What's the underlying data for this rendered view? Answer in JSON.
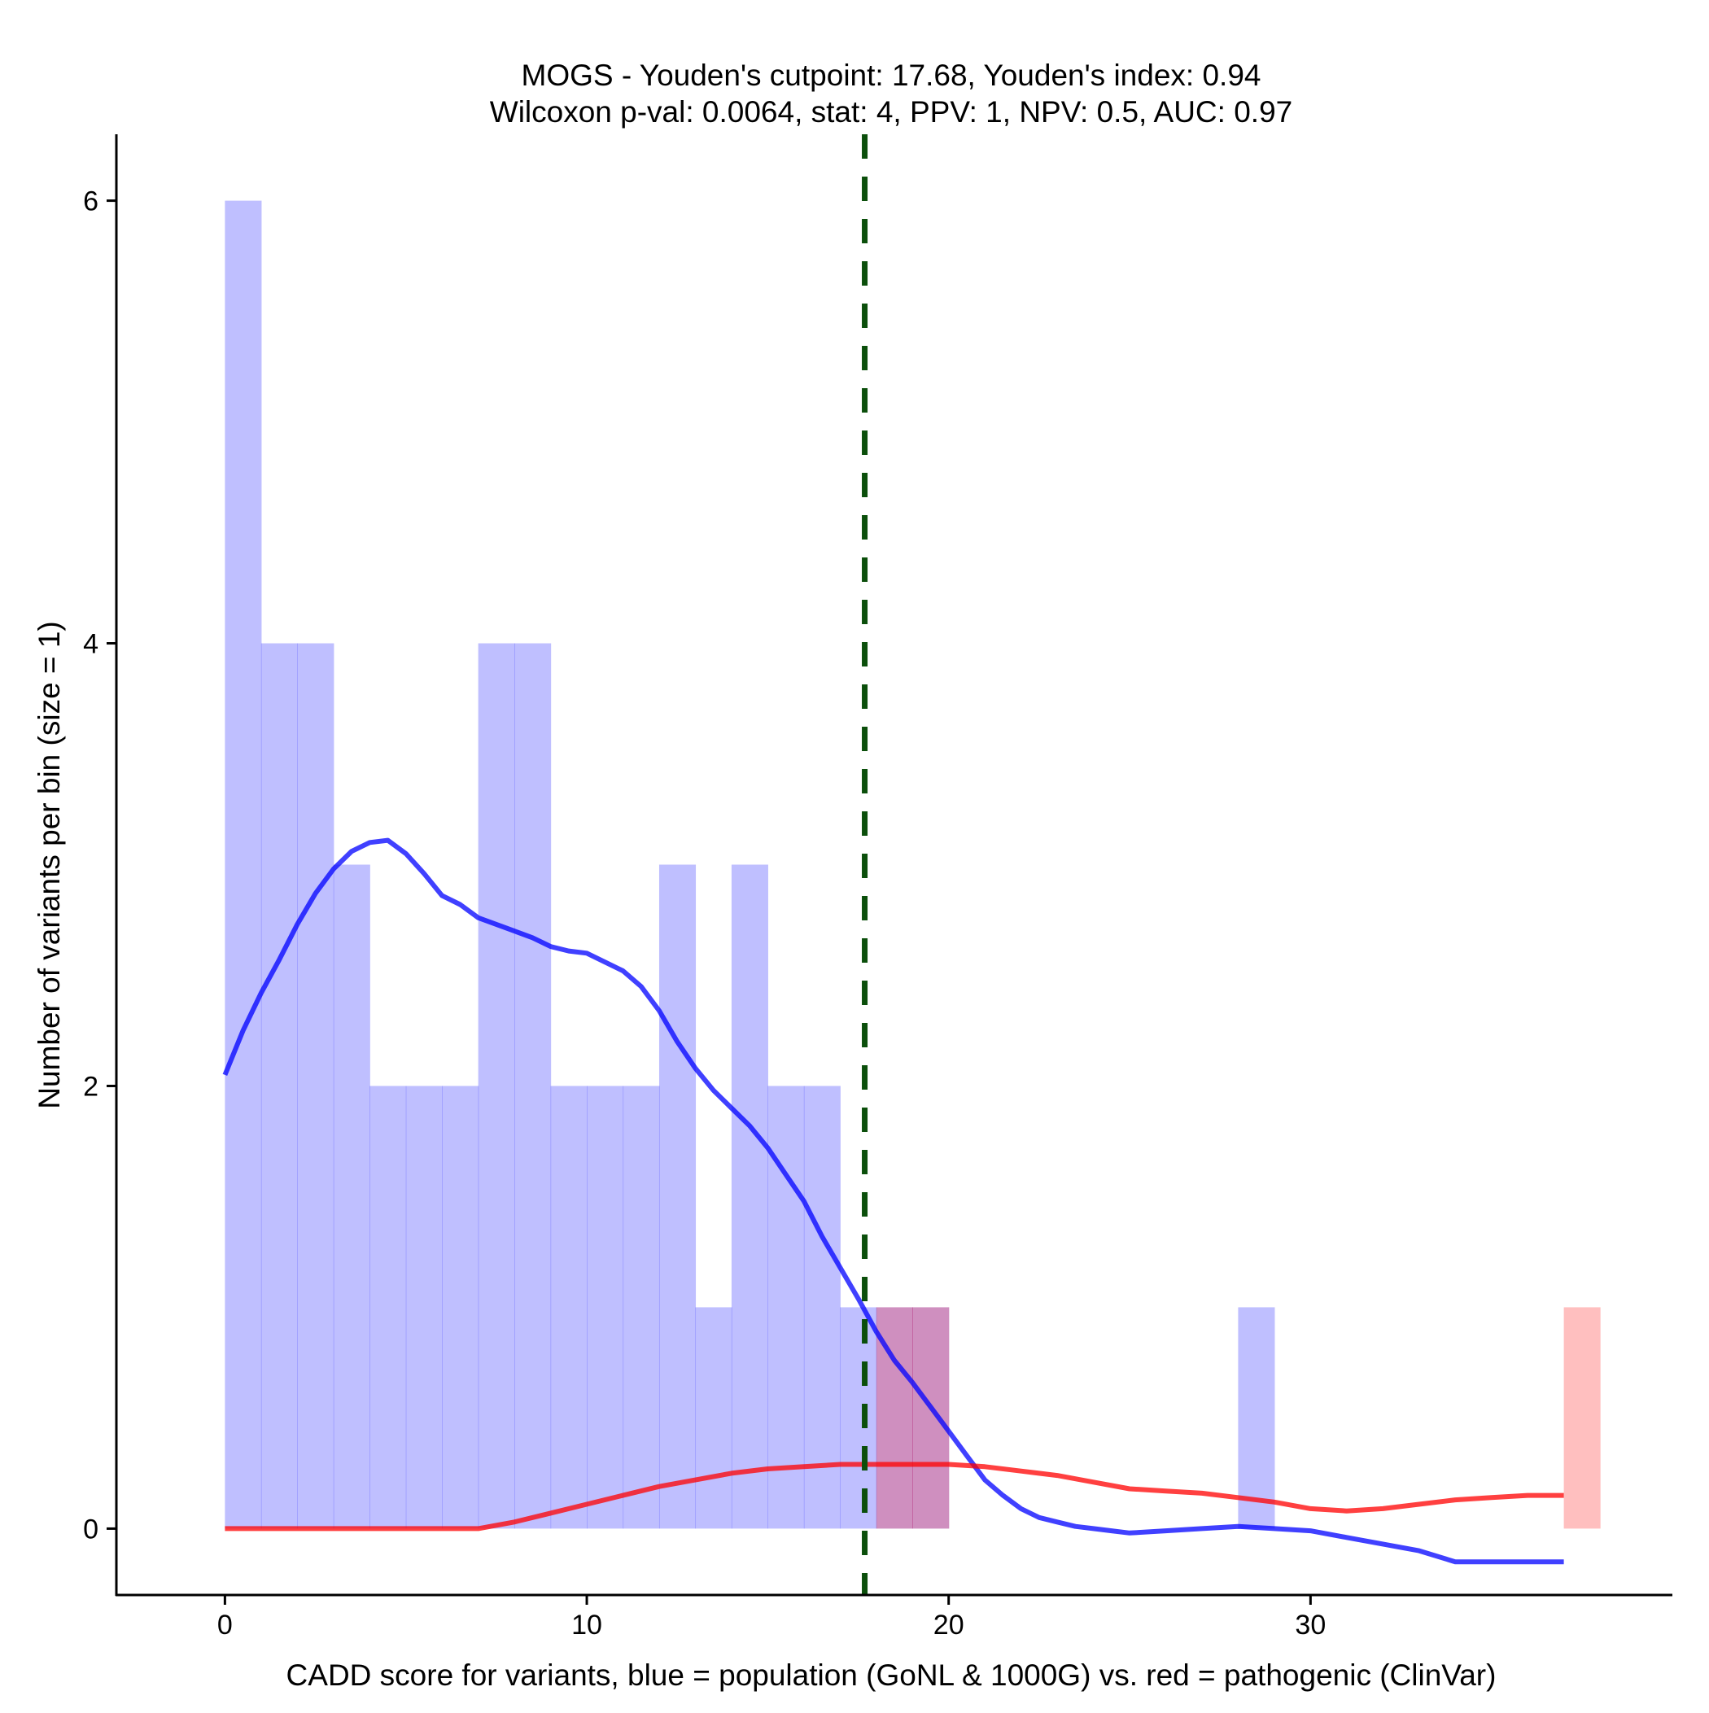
{
  "chart_data": {
    "type": "histogram",
    "title": "MOGS - Youden's cutpoint: 17.68, Youden's index: 0.94",
    "subtitle": "Wilcoxon p-val: 0.0064, stat: 4, PPV: 1, NPV: 0.5, AUC: 0.97",
    "xlabel": "CADD score for variants, blue = population (GoNL & 1000G) vs. red = pathogenic (ClinVar)",
    "ylabel": "Number of variants per bin (size = 1)",
    "xlim": [
      -3,
      40
    ],
    "ylim": [
      -0.3,
      6.3
    ],
    "x_ticks": [
      0,
      10,
      20,
      30
    ],
    "y_ticks": [
      0,
      2,
      4,
      6
    ],
    "cutpoint": 17.68,
    "series": [
      {
        "name": "population (GoNL & 1000G)",
        "color": "#0000ff",
        "bins": [
          {
            "x0": 0,
            "x1": 1,
            "count": 6
          },
          {
            "x0": 1,
            "x1": 2,
            "count": 4
          },
          {
            "x0": 2,
            "x1": 3,
            "count": 4
          },
          {
            "x0": 3,
            "x1": 4,
            "count": 3
          },
          {
            "x0": 4,
            "x1": 5,
            "count": 2
          },
          {
            "x0": 5,
            "x1": 6,
            "count": 2
          },
          {
            "x0": 6,
            "x1": 7,
            "count": 2
          },
          {
            "x0": 7,
            "x1": 8,
            "count": 4
          },
          {
            "x0": 8,
            "x1": 9,
            "count": 4
          },
          {
            "x0": 9,
            "x1": 10,
            "count": 2
          },
          {
            "x0": 10,
            "x1": 11,
            "count": 2
          },
          {
            "x0": 11,
            "x1": 12,
            "count": 2
          },
          {
            "x0": 12,
            "x1": 13,
            "count": 3
          },
          {
            "x0": 13,
            "x1": 14,
            "count": 1
          },
          {
            "x0": 14,
            "x1": 15,
            "count": 3
          },
          {
            "x0": 15,
            "x1": 16,
            "count": 2
          },
          {
            "x0": 16,
            "x1": 17,
            "count": 2
          },
          {
            "x0": 17,
            "x1": 18,
            "count": 1
          },
          {
            "x0": 18,
            "x1": 19,
            "count": 1
          },
          {
            "x0": 19,
            "x1": 20,
            "count": 1
          },
          {
            "x0": 28,
            "x1": 29,
            "count": 1
          }
        ],
        "density": [
          [
            0,
            2.05
          ],
          [
            0.5,
            2.25
          ],
          [
            1,
            2.42
          ],
          [
            1.5,
            2.57
          ],
          [
            2,
            2.73
          ],
          [
            2.5,
            2.87
          ],
          [
            3,
            2.98
          ],
          [
            3.5,
            3.06
          ],
          [
            4,
            3.1
          ],
          [
            4.5,
            3.11
          ],
          [
            5,
            3.05
          ],
          [
            5.5,
            2.96
          ],
          [
            6,
            2.86
          ],
          [
            6.5,
            2.82
          ],
          [
            7,
            2.76
          ],
          [
            7.5,
            2.73
          ],
          [
            8,
            2.7
          ],
          [
            8.5,
            2.67
          ],
          [
            9,
            2.63
          ],
          [
            9.5,
            2.61
          ],
          [
            10,
            2.6
          ],
          [
            10.5,
            2.56
          ],
          [
            11,
            2.52
          ],
          [
            11.5,
            2.45
          ],
          [
            12,
            2.34
          ],
          [
            12.5,
            2.2
          ],
          [
            13,
            2.08
          ],
          [
            13.5,
            1.98
          ],
          [
            14,
            1.9
          ],
          [
            14.5,
            1.82
          ],
          [
            15,
            1.72
          ],
          [
            15.5,
            1.6
          ],
          [
            16,
            1.48
          ],
          [
            16.5,
            1.32
          ],
          [
            17,
            1.18
          ],
          [
            17.5,
            1.04
          ],
          [
            18,
            0.89
          ],
          [
            18.5,
            0.76
          ],
          [
            19,
            0.66
          ],
          [
            19.5,
            0.55
          ],
          [
            20,
            0.44
          ],
          [
            20.5,
            0.33
          ],
          [
            21,
            0.22
          ],
          [
            21.5,
            0.15
          ],
          [
            22,
            0.09
          ],
          [
            22.5,
            0.05
          ],
          [
            23,
            0.03
          ],
          [
            23.5,
            0.01
          ],
          [
            24,
            0.0
          ],
          [
            24.5,
            -0.01
          ],
          [
            25,
            -0.02
          ],
          [
            26,
            -0.01
          ],
          [
            27,
            0.0
          ],
          [
            28,
            0.01
          ],
          [
            29,
            0.0
          ],
          [
            30,
            -0.01
          ],
          [
            31,
            -0.04
          ],
          [
            32,
            -0.07
          ],
          [
            33,
            -0.1
          ],
          [
            34,
            -0.15
          ],
          [
            35,
            -0.15
          ],
          [
            37,
            -0.15
          ]
        ]
      },
      {
        "name": "pathogenic (ClinVar)",
        "color": "#ff0000",
        "bins": [
          {
            "x0": 18,
            "x1": 19,
            "count": 1
          },
          {
            "x0": 19,
            "x1": 20,
            "count": 1
          },
          {
            "x0": 37,
            "x1": 38,
            "count": 1
          }
        ],
        "density": [
          [
            0,
            0.0
          ],
          [
            2,
            0.0
          ],
          [
            4,
            0.0
          ],
          [
            6,
            0.0
          ],
          [
            7,
            0.0
          ],
          [
            8,
            0.03
          ],
          [
            9,
            0.07
          ],
          [
            10,
            0.11
          ],
          [
            11,
            0.15
          ],
          [
            12,
            0.19
          ],
          [
            13,
            0.22
          ],
          [
            14,
            0.25
          ],
          [
            15,
            0.27
          ],
          [
            16,
            0.28
          ],
          [
            17,
            0.29
          ],
          [
            18,
            0.29
          ],
          [
            19,
            0.29
          ],
          [
            20,
            0.29
          ],
          [
            21,
            0.28
          ],
          [
            22,
            0.26
          ],
          [
            23,
            0.24
          ],
          [
            24,
            0.21
          ],
          [
            25,
            0.18
          ],
          [
            26,
            0.17
          ],
          [
            27,
            0.16
          ],
          [
            28,
            0.14
          ],
          [
            29,
            0.12
          ],
          [
            30,
            0.09
          ],
          [
            31,
            0.08
          ],
          [
            32,
            0.09
          ],
          [
            33,
            0.11
          ],
          [
            34,
            0.13
          ],
          [
            35,
            0.14
          ],
          [
            36,
            0.15
          ],
          [
            37,
            0.15
          ]
        ]
      }
    ]
  }
}
